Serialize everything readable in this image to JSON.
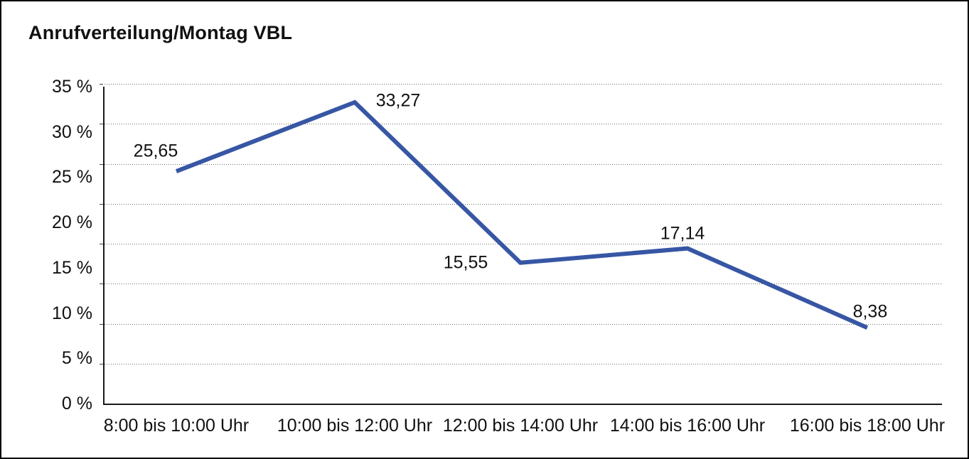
{
  "title": "Anrufverteilung/Montag VBL",
  "chart_data": {
    "type": "line",
    "title": "Anrufverteilung/Montag VBL",
    "categories": [
      "8:00 bis 10:00 Uhr",
      "10:00 bis 12:00 Uhr",
      "12:00 bis 14:00 Uhr",
      "14:00 bis 16:00 Uhr",
      "16:00 bis 18:00 Uhr"
    ],
    "values": [
      25.65,
      33.27,
      15.55,
      17.14,
      8.38
    ],
    "value_labels": [
      "25,65",
      "33,27",
      "15,55",
      "17,14",
      "8,38"
    ],
    "y_tick_values": [
      0,
      5,
      10,
      15,
      20,
      25,
      30,
      35
    ],
    "y_tick_labels": [
      "0 %",
      "5 %",
      "10 %",
      "15 %",
      "20 %",
      "25 %",
      "30 %",
      "35 %"
    ],
    "ylim": [
      0,
      35
    ],
    "xlabel": "",
    "ylabel": "",
    "grid": "dotted-horizontal",
    "grid_line_count": 8,
    "legend": "none",
    "line_color": "#3756A4",
    "text_color": "#111111",
    "axis_color": "#1a1a1a",
    "grid_color": "#6e6e6e"
  }
}
